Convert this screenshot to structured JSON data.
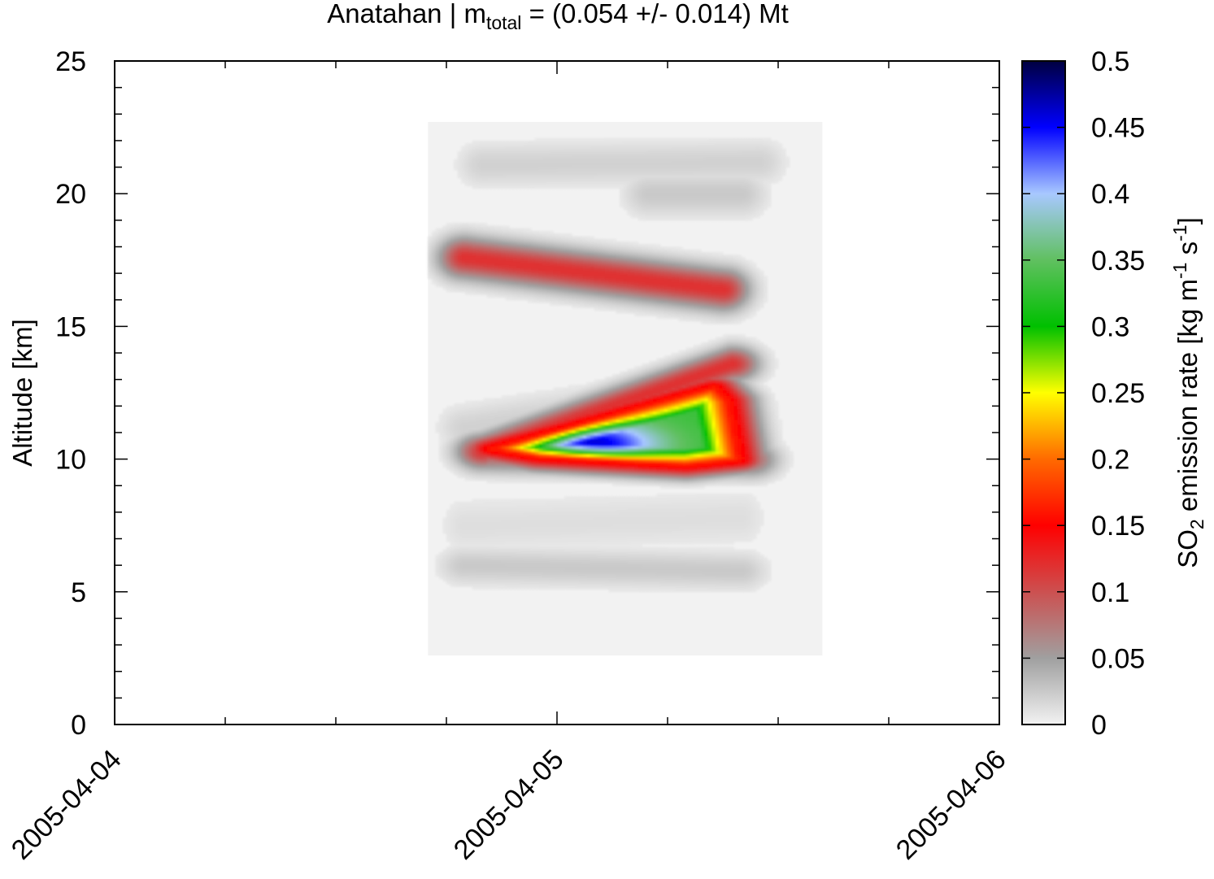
{
  "chart_data": {
    "type": "heatmap",
    "title": {
      "prefix": "Anatahan | m",
      "subscript": "total",
      "suffix": " = (0.054 +/- 0.014) Mt"
    },
    "xlabel": "",
    "ylabel": "Altitude [km]",
    "colorbar_label": {
      "p1": "SO",
      "sub": "2",
      "p2": " emission rate [kg m",
      "sup1": "-1",
      "p3": " s",
      "sup2": "-1",
      "p4": "]"
    },
    "x_axis": {
      "type": "date",
      "range": [
        "2005-04-04",
        "2005-04-06"
      ],
      "tick_labels": [
        "2005-04-04",
        "2005-04-05",
        "2005-04-06"
      ]
    },
    "y_axis": {
      "range": [
        0,
        25
      ],
      "tick_values": [
        0,
        5,
        10,
        15,
        20,
        25
      ],
      "tick_labels": [
        "0",
        "5",
        "10",
        "15",
        "20",
        "25"
      ]
    },
    "colorbar": {
      "range": [
        0,
        0.5
      ],
      "tick_labels": [
        "0",
        "0.05",
        "0.1",
        "0.15",
        "0.2",
        "0.25",
        "0.3",
        "0.35",
        "0.4",
        "0.45",
        "0.5"
      ],
      "colors": [
        {
          "v": 0.0,
          "c": "#f2f2f2"
        },
        {
          "v": 0.05,
          "c": "#a0a0a0"
        },
        {
          "v": 0.1,
          "c": "#cc5050"
        },
        {
          "v": 0.15,
          "c": "#ff0000"
        },
        {
          "v": 0.2,
          "c": "#ff6a00"
        },
        {
          "v": 0.25,
          "c": "#ffff00"
        },
        {
          "v": 0.3,
          "c": "#00c000"
        },
        {
          "v": 0.35,
          "c": "#60c060"
        },
        {
          "v": 0.4,
          "c": "#a8c8ff"
        },
        {
          "v": 0.45,
          "c": "#0000ff"
        },
        {
          "v": 0.5,
          "c": "#000040"
        }
      ]
    },
    "data_extent": {
      "time_start_hours": 17,
      "time_end_hours": 38.4,
      "altitude_min_km": 2.6,
      "altitude_max_km": 22.7
    },
    "features": [
      {
        "t0": 19,
        "z0": 17.6,
        "t1": 33,
        "z1": 16.4,
        "width": 0.55,
        "peak": 0.12
      },
      {
        "t0": 20,
        "z0": 10.3,
        "t1": 33.5,
        "z1": 13.6,
        "width": 0.45,
        "peak": 0.12
      },
      {
        "t0": 20,
        "z0": 10.2,
        "t1": 34.5,
        "z1": 10.0,
        "width": 0.45,
        "peak": 0.09
      },
      {
        "t0": 20,
        "z0": 21.1,
        "t1": 35,
        "z1": 21.2,
        "width": 0.6,
        "peak": 0.02
      },
      {
        "t0": 29,
        "z0": 20.0,
        "t1": 34,
        "z1": 20.0,
        "width": 0.6,
        "peak": 0.025
      },
      {
        "t0": 19,
        "z0": 6.0,
        "t1": 34,
        "z1": 5.8,
        "width": 0.5,
        "peak": 0.025
      },
      {
        "t0": 19,
        "z0": 7.5,
        "t1": 34,
        "z1": 7.8,
        "width": 0.8,
        "peak": 0.012
      },
      {
        "t0": 19,
        "z0": 11.2,
        "t1": 32,
        "z1": 12.6,
        "width": 0.6,
        "peak": 0.02
      }
    ],
    "core": {
      "polygon": [
        [
          20.5,
          10.4
        ],
        [
          32.5,
          12.7
        ],
        [
          33.2,
          12.2
        ],
        [
          33.8,
          10.0
        ],
        [
          31,
          9.8
        ],
        [
          23,
          10.1
        ]
      ],
      "peak": 0.46,
      "peak_at": [
        26,
        10.6
      ]
    }
  }
}
